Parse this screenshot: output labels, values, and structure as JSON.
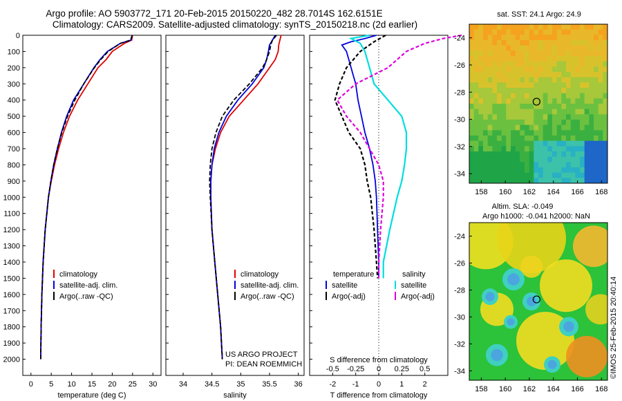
{
  "header": {
    "title_line1": "Argo profile: AO 5903772_171 20-Feb-2015 20150220_482 28.7014S 162.6151E",
    "title_line2": "Climatology: CARS2009. Satellite-adjusted climatology: synTS_20150218.nc (2d earlier)"
  },
  "colors": {
    "climatology": "#dd0000",
    "satellite": "#0000dd",
    "argo": "#000000",
    "sat_salinity": "#00dddd",
    "argo_salinity": "#dd00dd"
  },
  "chart_data": [
    {
      "type": "line",
      "xlabel": "temperature (deg C)",
      "ylabel": "",
      "xlim": [
        -2,
        32
      ],
      "ylim": [
        2100,
        0
      ],
      "xticks": [
        "0",
        "5",
        "10",
        "15",
        "20",
        "25",
        "30"
      ],
      "yticks": [
        "0",
        "100",
        "200",
        "300",
        "400",
        "500",
        "600",
        "700",
        "800",
        "900",
        "1000",
        "1100",
        "1200",
        "1300",
        "1400",
        "1500",
        "1600",
        "1700",
        "1800",
        "1900",
        "2000"
      ],
      "legend": [
        "climatology",
        "satellite-adj. clim.",
        "Argo(..raw -QC)"
      ],
      "legend_position": "bottom-center",
      "series": [
        {
          "name": "climatology",
          "depth": [
            0,
            30,
            50,
            100,
            150,
            200,
            300,
            400,
            500,
            600,
            700,
            800,
            900,
            1000,
            1200,
            1400,
            1600,
            1800,
            2000
          ],
          "values": [
            25,
            24.8,
            23,
            20,
            18.5,
            16.5,
            14,
            11.5,
            9.5,
            8,
            6.8,
            5.8,
            5,
            4.3,
            3.5,
            3,
            2.7,
            2.5,
            2.4
          ]
        },
        {
          "name": "satellite-adj. clim.",
          "depth": [
            0,
            30,
            50,
            100,
            150,
            200,
            300,
            400,
            500,
            600,
            700,
            800,
            900,
            1000,
            1200,
            1400,
            1600,
            1800,
            2000
          ],
          "values": [
            24.9,
            24.6,
            22,
            18.8,
            17,
            15.5,
            13,
            10.5,
            8.8,
            7.5,
            6.5,
            5.6,
            4.9,
            4.3,
            3.5,
            3,
            2.7,
            2.5,
            2.4
          ]
        },
        {
          "name": "Argo(..raw -QC)",
          "depth": [
            0,
            30,
            50,
            100,
            150,
            200,
            300,
            400,
            500,
            600,
            700,
            800,
            900,
            1000,
            1200,
            1400,
            1600,
            1800,
            2000
          ],
          "values": [
            24.9,
            24.5,
            22,
            19,
            17.2,
            15.6,
            13,
            10.8,
            9,
            7.6,
            6.5,
            5.6,
            4.9,
            4.3,
            3.5,
            3,
            2.7,
            2.5,
            2.4
          ]
        }
      ]
    },
    {
      "type": "line",
      "xlabel": "salinity",
      "ylabel": "",
      "xlim": [
        33.7,
        36.1
      ],
      "ylim": [
        2100,
        0
      ],
      "xticks": [
        "34",
        "34.5",
        "35",
        "35.5",
        "36"
      ],
      "legend": [
        "climatology",
        "satellite-adj. clim.",
        "Argo(..raw -QC)"
      ],
      "legend_position": "bottom-center",
      "annotations": [
        "US ARGO PROJECT",
        "PI: DEAN ROEMMICH"
      ],
      "series": [
        {
          "name": "climatology",
          "depth": [
            0,
            30,
            60,
            100,
            150,
            200,
            300,
            400,
            500,
            600,
            700,
            800,
            900,
            1000,
            1200,
            1400,
            1600,
            1800,
            2000
          ],
          "values": [
            35.7,
            35.68,
            35.66,
            35.65,
            35.6,
            35.5,
            35.3,
            35.05,
            34.8,
            34.65,
            34.56,
            34.5,
            34.48,
            34.48,
            34.5,
            34.55,
            34.6,
            34.65,
            34.68
          ]
        },
        {
          "name": "satellite-adj. clim.",
          "depth": [
            0,
            30,
            60,
            100,
            150,
            200,
            300,
            400,
            500,
            600,
            700,
            800,
            900,
            1000,
            1200,
            1400,
            1600,
            1800,
            2000
          ],
          "values": [
            35.6,
            35.55,
            35.5,
            35.48,
            35.45,
            35.4,
            35.2,
            34.95,
            34.75,
            34.62,
            34.54,
            34.5,
            34.48,
            34.48,
            34.5,
            34.55,
            34.6,
            34.65,
            34.68
          ]
        },
        {
          "name": "Argo(..raw -QC)",
          "depth": [
            0,
            30,
            60,
            100,
            150,
            200,
            300,
            400,
            500,
            600,
            700,
            800,
            900,
            1000,
            1200,
            1400,
            1600,
            1800,
            2000
          ],
          "values": [
            35.62,
            35.55,
            35.52,
            35.5,
            35.45,
            35.38,
            35.15,
            34.88,
            34.68,
            34.57,
            34.5,
            34.47,
            34.46,
            34.47,
            34.5,
            34.55,
            34.6,
            34.65,
            34.68
          ]
        }
      ]
    },
    {
      "type": "line",
      "xlabel": "T difference from climatology",
      "title": "S difference from climatology",
      "xlim": [
        -3,
        3
      ],
      "xticks": [
        "-2",
        "-1",
        "0",
        "1",
        "2"
      ],
      "xticks_top": [
        "-0.5",
        "-0.25",
        "0",
        "0.25",
        "0.5"
      ],
      "ylim": [
        2100,
        0
      ],
      "legend_title_left": "temperature",
      "legend_title_right": "salinity",
      "legend": [
        "satellite",
        "Argo(-adj)",
        "satellite",
        "Argo(-adj)"
      ],
      "series": [
        {
          "name": "satellite",
          "group": "temperature",
          "depth": [
            0,
            20,
            40,
            60,
            100,
            150,
            200,
            250,
            300,
            400,
            500,
            600,
            700,
            800,
            900,
            1000,
            1200,
            1400,
            1500
          ],
          "values": [
            -0.1,
            -0.6,
            -1.2,
            -1.6,
            -1.4,
            -1.3,
            -1.2,
            -1.1,
            -1.0,
            -0.9,
            -0.75,
            -0.6,
            -0.4,
            -0.25,
            -0.15,
            -0.1,
            -0.05,
            0,
            0
          ]
        },
        {
          "name": "Argo(-adj)",
          "group": "temperature",
          "depth": [
            0,
            40,
            100,
            200,
            300,
            400,
            500,
            600,
            700,
            800,
            900,
            1000,
            1200,
            1400,
            1500
          ],
          "values": [
            0.3,
            -0.2,
            -0.8,
            -1.4,
            -1.7,
            -1.9,
            -1.6,
            -1.3,
            -0.8,
            -0.6,
            -0.5,
            -0.35,
            -0.2,
            -0.1,
            -0.05
          ]
        },
        {
          "name": "satellite",
          "group": "salinity",
          "depth": [
            0,
            20,
            50,
            100,
            200,
            300,
            400,
            500,
            600,
            700,
            800,
            900,
            1000,
            1200,
            1400,
            1500
          ],
          "values": [
            -0.1,
            -0.3,
            -0.2,
            -0.15,
            -0.1,
            -0.05,
            0.1,
            0.25,
            0.3,
            0.3,
            0.28,
            0.25,
            0.2,
            0.12,
            0.05,
            0.05
          ]
        },
        {
          "name": "Argo(-adj)",
          "group": "salinity",
          "depth": [
            0,
            20,
            50,
            100,
            200,
            300,
            400,
            500,
            600,
            700,
            800,
            900,
            1000,
            1200,
            1400,
            1500
          ],
          "values": [
            0.9,
            0.7,
            0.5,
            0.3,
            0.1,
            -0.25,
            -0.45,
            -0.35,
            -0.2,
            -0.1,
            0,
            0.05,
            0.05,
            0.02,
            0,
            0
          ]
        }
      ]
    },
    {
      "type": "heatmap",
      "title": "sat. SST: 24.1  Argo: 24.9",
      "xticks": [
        "158",
        "160",
        "162",
        "164",
        "166",
        "168"
      ],
      "yticks": [
        "-24",
        "-26",
        "-28",
        "-30",
        "-32",
        "-34"
      ],
      "marker": {
        "lon": 162.6,
        "lat": -28.7
      }
    },
    {
      "type": "heatmap",
      "title_line1": "Altim. SLA: -0.049",
      "title_line2": "Argo h1000: -0.041  h2000: NaN",
      "xticks": [
        "158",
        "160",
        "162",
        "164",
        "166",
        "168"
      ],
      "yticks": [
        "-24",
        "-26",
        "-28",
        "-30",
        "-32",
        "-34"
      ],
      "marker": {
        "lon": 162.6,
        "lat": -28.7
      }
    }
  ],
  "footer": {
    "side_label": "©IMOS 25-Feb-2015 20:40:14"
  }
}
